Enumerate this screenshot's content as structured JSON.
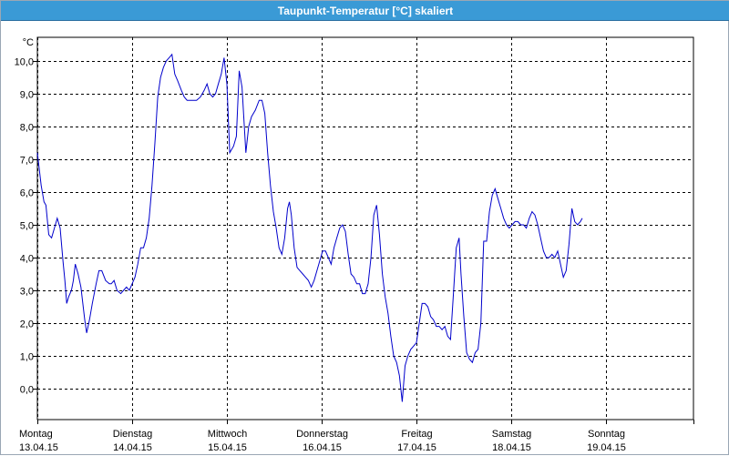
{
  "window": {
    "title": "Taupunkt-Temperatur [°C] skaliert"
  },
  "colors": {
    "line": "#0000cc",
    "titlebar": "#3a9ad6",
    "grid": "#000000"
  },
  "chart_data": {
    "type": "line",
    "title": "Taupunkt-Temperatur [°C] skaliert",
    "unit": "°C",
    "ylim": [
      -0.5,
      10.5
    ],
    "yticks": [
      {
        "v": 10,
        "label": "10,0"
      },
      {
        "v": 9,
        "label": "9,0"
      },
      {
        "v": 8,
        "label": "8,0"
      },
      {
        "v": 7,
        "label": "7,0"
      },
      {
        "v": 6,
        "label": "6,0"
      },
      {
        "v": 5,
        "label": "5,0"
      },
      {
        "v": 4,
        "label": "4,0"
      },
      {
        "v": 3,
        "label": "3,0"
      },
      {
        "v": 2,
        "label": "2,0"
      },
      {
        "v": 1,
        "label": "1,0"
      },
      {
        "v": 0,
        "label": "0,0"
      }
    ],
    "xlim": [
      0,
      7
    ],
    "xticks": [
      {
        "day": "Montag",
        "date": "13.04.15"
      },
      {
        "day": "Dienstag",
        "date": "14.04.15"
      },
      {
        "day": "Mittwoch",
        "date": "15.04.15"
      },
      {
        "day": "Donnerstag",
        "date": "16.04.15"
      },
      {
        "day": "Freitag",
        "date": "17.04.15"
      },
      {
        "day": "Samstag",
        "date": "18.04.15"
      },
      {
        "day": "Sonntag",
        "date": "19.04.15"
      }
    ],
    "grid": true,
    "series": [
      {
        "values": [
          [
            0.0,
            7.2
          ],
          [
            0.04,
            6.2
          ],
          [
            0.07,
            5.7
          ],
          [
            0.09,
            5.6
          ],
          [
            0.12,
            4.7
          ],
          [
            0.15,
            4.6
          ],
          [
            0.18,
            4.9
          ],
          [
            0.21,
            5.2
          ],
          [
            0.24,
            4.9
          ],
          [
            0.27,
            3.9
          ],
          [
            0.29,
            3.3
          ],
          [
            0.31,
            2.6
          ],
          [
            0.33,
            2.8
          ],
          [
            0.36,
            3.0
          ],
          [
            0.38,
            3.3
          ],
          [
            0.4,
            3.8
          ],
          [
            0.43,
            3.5
          ],
          [
            0.46,
            3.1
          ],
          [
            0.5,
            2.1
          ],
          [
            0.52,
            1.7
          ],
          [
            0.55,
            2.1
          ],
          [
            0.58,
            2.6
          ],
          [
            0.62,
            3.2
          ],
          [
            0.65,
            3.6
          ],
          [
            0.68,
            3.6
          ],
          [
            0.72,
            3.3
          ],
          [
            0.76,
            3.2
          ],
          [
            0.78,
            3.2
          ],
          [
            0.81,
            3.3
          ],
          [
            0.84,
            3.0
          ],
          [
            0.88,
            2.9
          ],
          [
            0.91,
            3.0
          ],
          [
            0.94,
            3.1
          ],
          [
            0.97,
            3.0
          ],
          [
            1.0,
            3.2
          ],
          [
            1.03,
            3.4
          ],
          [
            1.06,
            3.8
          ],
          [
            1.09,
            4.3
          ],
          [
            1.12,
            4.3
          ],
          [
            1.15,
            4.6
          ],
          [
            1.18,
            5.2
          ],
          [
            1.21,
            6.2
          ],
          [
            1.24,
            7.5
          ],
          [
            1.27,
            8.9
          ],
          [
            1.3,
            9.5
          ],
          [
            1.33,
            9.8
          ],
          [
            1.36,
            10.0
          ],
          [
            1.39,
            10.1
          ],
          [
            1.42,
            10.2
          ],
          [
            1.45,
            9.6
          ],
          [
            1.48,
            9.4
          ],
          [
            1.52,
            9.1
          ],
          [
            1.55,
            8.9
          ],
          [
            1.58,
            8.8
          ],
          [
            1.62,
            8.8
          ],
          [
            1.65,
            8.8
          ],
          [
            1.68,
            8.8
          ],
          [
            1.72,
            8.9
          ],
          [
            1.76,
            9.1
          ],
          [
            1.79,
            9.3
          ],
          [
            1.82,
            9.0
          ],
          [
            1.85,
            8.9
          ],
          [
            1.88,
            9.0
          ],
          [
            1.91,
            9.3
          ],
          [
            1.94,
            9.6
          ],
          [
            1.97,
            10.1
          ],
          [
            2.0,
            9.3
          ],
          [
            2.03,
            7.2
          ],
          [
            2.07,
            7.4
          ],
          [
            2.1,
            7.7
          ],
          [
            2.13,
            9.7
          ],
          [
            2.16,
            9.2
          ],
          [
            2.2,
            7.2
          ],
          [
            2.23,
            8.0
          ],
          [
            2.26,
            8.3
          ],
          [
            2.3,
            8.5
          ],
          [
            2.34,
            8.8
          ],
          [
            2.37,
            8.8
          ],
          [
            2.4,
            8.4
          ],
          [
            2.43,
            7.2
          ],
          [
            2.46,
            6.2
          ],
          [
            2.49,
            5.4
          ],
          [
            2.52,
            4.9
          ],
          [
            2.55,
            4.3
          ],
          [
            2.58,
            4.1
          ],
          [
            2.61,
            4.6
          ],
          [
            2.64,
            5.5
          ],
          [
            2.66,
            5.7
          ],
          [
            2.68,
            5.3
          ],
          [
            2.71,
            4.3
          ],
          [
            2.74,
            3.7
          ],
          [
            2.77,
            3.6
          ],
          [
            2.8,
            3.5
          ],
          [
            2.83,
            3.4
          ],
          [
            2.86,
            3.3
          ],
          [
            2.89,
            3.1
          ],
          [
            2.92,
            3.3
          ],
          [
            2.95,
            3.6
          ],
          [
            2.98,
            3.9
          ],
          [
            3.01,
            4.2
          ],
          [
            3.04,
            4.2
          ],
          [
            3.07,
            4.0
          ],
          [
            3.1,
            3.8
          ],
          [
            3.13,
            4.3
          ],
          [
            3.16,
            4.6
          ],
          [
            3.19,
            4.9
          ],
          [
            3.22,
            5.0
          ],
          [
            3.25,
            4.8
          ],
          [
            3.28,
            4.1
          ],
          [
            3.31,
            3.5
          ],
          [
            3.34,
            3.4
          ],
          [
            3.37,
            3.2
          ],
          [
            3.4,
            3.2
          ],
          [
            3.43,
            2.9
          ],
          [
            3.46,
            2.9
          ],
          [
            3.49,
            3.2
          ],
          [
            3.52,
            4.0
          ],
          [
            3.55,
            5.3
          ],
          [
            3.58,
            5.6
          ],
          [
            3.61,
            4.7
          ],
          [
            3.64,
            3.5
          ],
          [
            3.67,
            2.8
          ],
          [
            3.7,
            2.3
          ],
          [
            3.73,
            1.6
          ],
          [
            3.76,
            1.0
          ],
          [
            3.79,
            0.8
          ],
          [
            3.82,
            0.4
          ],
          [
            3.85,
            -0.4
          ],
          [
            3.88,
            0.7
          ],
          [
            3.91,
            1.0
          ],
          [
            3.94,
            1.2
          ],
          [
            3.97,
            1.3
          ],
          [
            4.0,
            1.4
          ],
          [
            4.03,
            2.0
          ],
          [
            4.06,
            2.6
          ],
          [
            4.09,
            2.6
          ],
          [
            4.12,
            2.5
          ],
          [
            4.15,
            2.2
          ],
          [
            4.18,
            2.1
          ],
          [
            4.21,
            1.9
          ],
          [
            4.24,
            1.9
          ],
          [
            4.27,
            1.8
          ],
          [
            4.3,
            1.9
          ],
          [
            4.33,
            1.6
          ],
          [
            4.36,
            1.5
          ],
          [
            4.39,
            2.9
          ],
          [
            4.42,
            4.3
          ],
          [
            4.45,
            4.6
          ],
          [
            4.47,
            3.5
          ],
          [
            4.5,
            2.2
          ],
          [
            4.53,
            1.1
          ],
          [
            4.56,
            0.9
          ],
          [
            4.59,
            0.8
          ],
          [
            4.62,
            1.1
          ],
          [
            4.65,
            1.2
          ],
          [
            4.68,
            2.0
          ],
          [
            4.71,
            4.5
          ],
          [
            4.74,
            4.5
          ],
          [
            4.77,
            5.4
          ],
          [
            4.8,
            5.9
          ],
          [
            4.83,
            6.1
          ],
          [
            4.86,
            5.8
          ],
          [
            4.89,
            5.5
          ],
          [
            4.92,
            5.2
          ],
          [
            4.95,
            5.0
          ],
          [
            4.98,
            4.9
          ],
          [
            5.01,
            5.0
          ],
          [
            5.04,
            5.1
          ],
          [
            5.07,
            5.1
          ],
          [
            5.1,
            5.0
          ],
          [
            5.13,
            5.0
          ],
          [
            5.16,
            4.9
          ],
          [
            5.19,
            5.2
          ],
          [
            5.22,
            5.4
          ],
          [
            5.25,
            5.3
          ],
          [
            5.28,
            5.0
          ],
          [
            5.31,
            4.6
          ],
          [
            5.34,
            4.2
          ],
          [
            5.37,
            4.0
          ],
          [
            5.4,
            4.0
          ],
          [
            5.43,
            4.1
          ],
          [
            5.46,
            4.0
          ],
          [
            5.49,
            4.2
          ],
          [
            5.52,
            3.8
          ],
          [
            5.55,
            3.4
          ],
          [
            5.58,
            3.6
          ],
          [
            5.61,
            4.4
          ],
          [
            5.64,
            5.5
          ],
          [
            5.67,
            5.1
          ],
          [
            5.7,
            5.0
          ],
          [
            5.73,
            5.1
          ],
          [
            5.75,
            5.2
          ]
        ]
      }
    ]
  }
}
